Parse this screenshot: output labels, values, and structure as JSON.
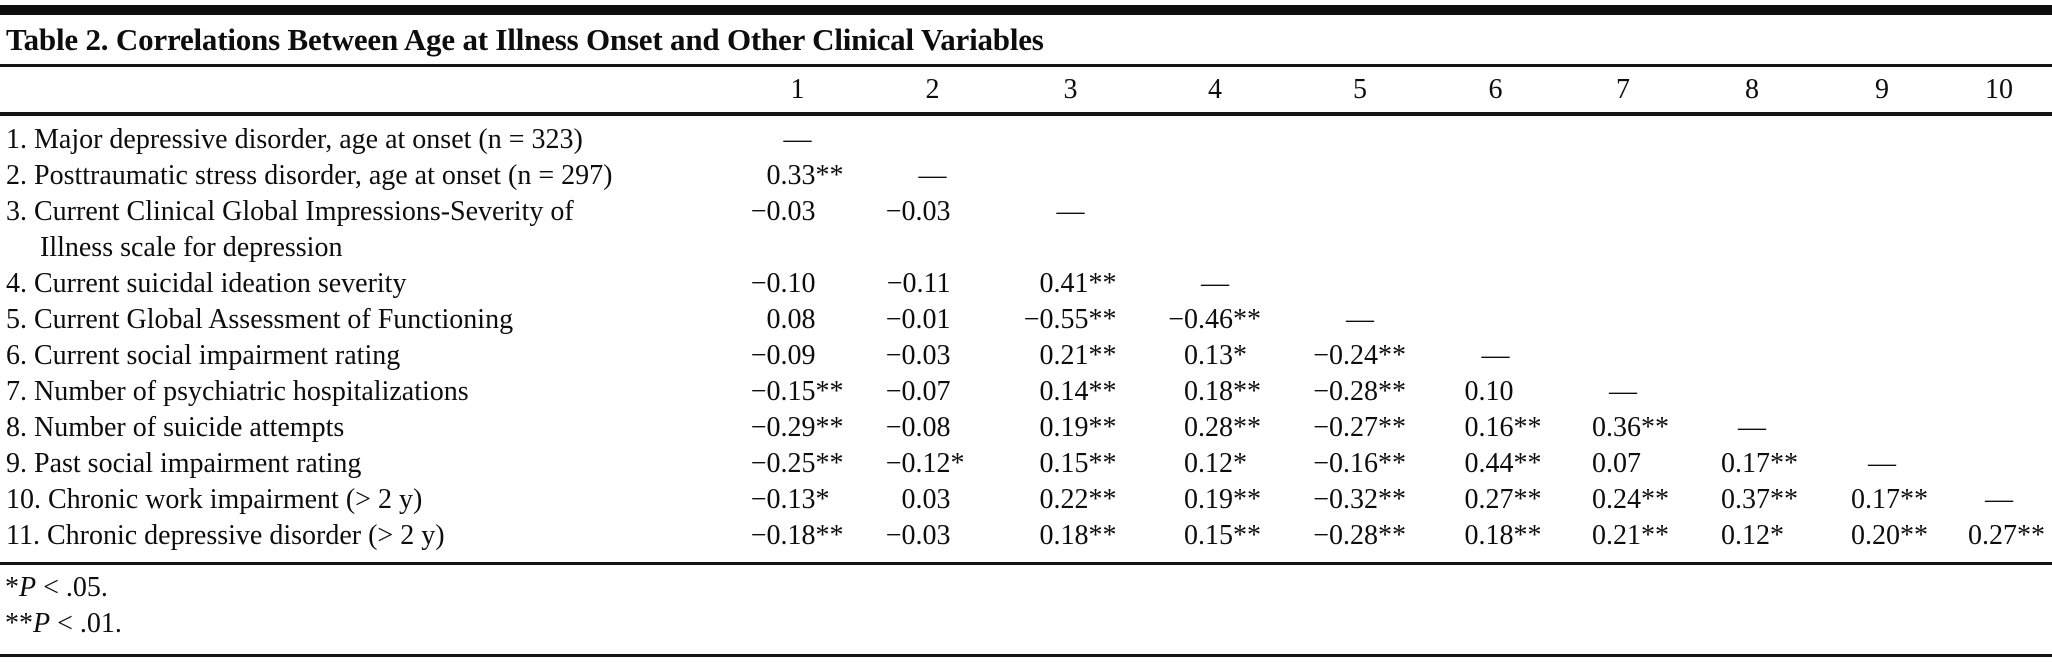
{
  "colors": {
    "text": "#0d0d0d",
    "rule": "#141414",
    "background": "#ffffff"
  },
  "table": {
    "title": "Table 2. Correlations Between Age at Illness Onset and Other Clinical Variables",
    "column_headers": [
      "1",
      "2",
      "3",
      "4",
      "5",
      "6",
      "7",
      "8",
      "9",
      "10"
    ],
    "rows": [
      {
        "label": "1. Major depressive disorder, age at onset (n = 323)",
        "values": [
          "—",
          "",
          "",
          "",
          "",
          "",
          "",
          "",
          "",
          ""
        ]
      },
      {
        "label": "2. Posttraumatic stress disorder, age at onset (n = 297)",
        "values": [
          "0.33**",
          "—",
          "",
          "",
          "",
          "",
          "",
          "",
          "",
          ""
        ]
      },
      {
        "label": "3. Current Clinical Global Impressions-Severity of\nIllness scale for depression",
        "values": [
          "−0.03",
          "−0.03",
          "—",
          "",
          "",
          "",
          "",
          "",
          "",
          ""
        ]
      },
      {
        "label": "4. Current suicidal ideation severity",
        "values": [
          "−0.10",
          "−0.11",
          "0.41**",
          "—",
          "",
          "",
          "",
          "",
          "",
          ""
        ]
      },
      {
        "label": "5. Current Global Assessment of Functioning",
        "values": [
          "0.08",
          "−0.01",
          "−0.55**",
          "−0.46**",
          "—",
          "",
          "",
          "",
          "",
          ""
        ]
      },
      {
        "label": "6. Current social impairment rating",
        "values": [
          "−0.09",
          "−0.03",
          "0.21**",
          "0.13*",
          "−0.24**",
          "—",
          "",
          "",
          "",
          ""
        ]
      },
      {
        "label": "7. Number of psychiatric hospitalizations",
        "values": [
          "−0.15**",
          "−0.07",
          "0.14**",
          "0.18**",
          "−0.28**",
          "0.10",
          "—",
          "",
          "",
          ""
        ]
      },
      {
        "label": "8. Number of suicide attempts",
        "values": [
          "−0.29**",
          "−0.08",
          "0.19**",
          "0.28**",
          "−0.27**",
          "0.16**",
          "0.36**",
          "—",
          "",
          ""
        ]
      },
      {
        "label": "9. Past social impairment rating",
        "values": [
          "−0.25**",
          "−0.12*",
          "0.15**",
          "0.12*",
          "−0.16**",
          "0.44**",
          "0.07",
          "0.17**",
          "—",
          ""
        ]
      },
      {
        "label": "10. Chronic work impairment (> 2 y)",
        "values": [
          "−0.13*",
          "0.03",
          "0.22**",
          "0.19**",
          "−0.32**",
          "0.27**",
          "0.24**",
          "0.37**",
          "0.17**",
          "—"
        ]
      },
      {
        "label": "11. Chronic depressive disorder (> 2 y)",
        "values": [
          "−0.18**",
          "−0.03",
          "0.18**",
          "0.15**",
          "−0.28**",
          "0.18**",
          "0.21**",
          "0.12*",
          "0.20**",
          "0.27**"
        ]
      }
    ],
    "footnotes": [
      {
        "marker": "*",
        "symbol": "P",
        "text": " < .05."
      },
      {
        "marker": "**",
        "symbol": "P",
        "text": " < .01."
      }
    ]
  }
}
